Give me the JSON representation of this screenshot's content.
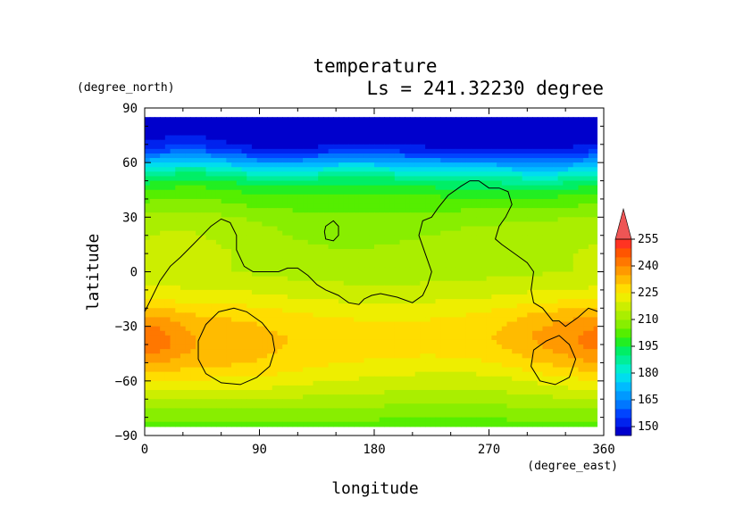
{
  "chart_data": {
    "type": "heatmap",
    "title": "temperature",
    "subtitle": "Ls = 241.32230 degree",
    "xlabel": "longitude",
    "ylabel": "latitude",
    "x_unit": "(degree_east)",
    "y_unit": "(degree_north)",
    "xlim": [
      0,
      360
    ],
    "ylim": [
      -90,
      90
    ],
    "x_ticks": [
      0,
      90,
      180,
      270,
      360
    ],
    "y_ticks": [
      90,
      60,
      30,
      0,
      -30,
      -60,
      -90
    ],
    "x_tick_labels": [
      "0",
      "90",
      "180",
      "270",
      "360"
    ],
    "y_tick_labels": [
      "90",
      "60",
      "30",
      "0",
      "−30",
      "−60",
      "−90"
    ],
    "data_lat_range": [
      -85,
      85
    ],
    "colorbar": {
      "levels": [
        145,
        150,
        155,
        160,
        165,
        170,
        175,
        180,
        185,
        190,
        195,
        200,
        205,
        210,
        215,
        220,
        225,
        230,
        235,
        240,
        245,
        250,
        255,
        260
      ],
      "colors": [
        "#0000cc",
        "#0022ee",
        "#0044ff",
        "#0077ff",
        "#0099ff",
        "#00bbff",
        "#00ddee",
        "#00eecc",
        "#00ee99",
        "#00ee66",
        "#22ee22",
        "#55ee00",
        "#88ee00",
        "#aaee00",
        "#ccee00",
        "#eeee00",
        "#ffdd00",
        "#ffbb00",
        "#ff9900",
        "#ff7700",
        "#ff5500",
        "#ff3322",
        "#ee5555"
      ],
      "tick_labels": [
        "150",
        "165",
        "180",
        "195",
        "210",
        "225",
        "240",
        "255"
      ],
      "extend": "max"
    },
    "zonal_mean_temperature": {
      "lat": [
        85,
        80,
        75,
        70,
        65,
        60,
        55,
        50,
        45,
        40,
        35,
        30,
        25,
        20,
        15,
        10,
        5,
        0,
        -5,
        -10,
        -15,
        -20,
        -25,
        -30,
        -35,
        -40,
        -45,
        -50,
        -55,
        -60,
        -65,
        -70,
        -75,
        -80,
        -85
      ],
      "values": [
        148,
        148,
        149,
        152,
        160,
        172,
        183,
        192,
        198,
        203,
        206,
        210,
        212,
        213,
        214,
        215,
        215,
        215,
        217,
        219,
        221,
        224,
        226,
        227,
        228,
        228,
        227,
        226,
        224,
        221,
        218,
        214,
        210,
        206,
        203
      ]
    },
    "anomalies": [
      {
        "lon": 7,
        "lat": -37,
        "amp": 7,
        "rlon": 18,
        "rlat": 12
      },
      {
        "lon": 70,
        "lat": -40,
        "amp": 5,
        "rlon": 35,
        "rlat": 18
      },
      {
        "lon": 340,
        "lat": -40,
        "amp": 8,
        "rlon": 40,
        "rlat": 16
      },
      {
        "lon": 320,
        "lat": -30,
        "amp": 3,
        "rlon": 30,
        "rlat": 10
      },
      {
        "lon": 190,
        "lat": 10,
        "amp": -3,
        "rlon": 80,
        "rlat": 30
      },
      {
        "lon": 150,
        "lat": 20,
        "amp": -2,
        "rlon": 40,
        "rlat": 12
      },
      {
        "lon": 250,
        "lat": -60,
        "amp": -4,
        "rlon": 60,
        "rlat": 10
      },
      {
        "lon": 270,
        "lat": 60,
        "amp": -8,
        "rlon": 60,
        "rlat": 12
      },
      {
        "lon": 120,
        "lat": 65,
        "amp": -6,
        "rlon": 40,
        "rlat": 10
      },
      {
        "lon": 200,
        "lat": 55,
        "amp": 6,
        "rlon": 50,
        "rlat": 10
      },
      {
        "lon": 40,
        "lat": 55,
        "amp": 5,
        "rlon": 40,
        "rlat": 10
      },
      {
        "lon": 30,
        "lat": 20,
        "amp": 3,
        "rlon": 30,
        "rlat": 15
      }
    ],
    "contours": [
      {
        "name": "north-boundary",
        "points": [
          [
            0,
            -22
          ],
          [
            5,
            -15
          ],
          [
            12,
            -5
          ],
          [
            20,
            3
          ],
          [
            28,
            8
          ],
          [
            38,
            15
          ],
          [
            45,
            20
          ],
          [
            52,
            25
          ],
          [
            60,
            29
          ],
          [
            67,
            27
          ],
          [
            72,
            20
          ],
          [
            72,
            12
          ],
          [
            78,
            3
          ],
          [
            85,
            0
          ],
          [
            105,
            0
          ],
          [
            112,
            2
          ],
          [
            120,
            2
          ],
          [
            128,
            -2
          ],
          [
            135,
            -7
          ],
          [
            142,
            -10
          ],
          [
            152,
            -13
          ],
          [
            160,
            -17
          ],
          [
            168,
            -18
          ],
          [
            172,
            -15
          ],
          [
            178,
            -13
          ],
          [
            185,
            -12
          ],
          [
            198,
            -14
          ],
          [
            210,
            -17
          ],
          [
            218,
            -13
          ],
          [
            222,
            -7
          ],
          [
            225,
            0
          ],
          [
            220,
            10
          ],
          [
            215,
            20
          ],
          [
            218,
            28
          ],
          [
            225,
            30
          ],
          [
            230,
            35
          ],
          [
            238,
            42
          ],
          [
            248,
            47
          ],
          [
            255,
            50
          ],
          [
            262,
            50
          ],
          [
            270,
            46
          ],
          [
            278,
            46
          ],
          [
            285,
            44
          ],
          [
            288,
            37
          ],
          [
            283,
            30
          ],
          [
            278,
            25
          ],
          [
            275,
            18
          ],
          [
            280,
            15
          ],
          [
            290,
            10
          ],
          [
            300,
            5
          ],
          [
            305,
            0
          ],
          [
            303,
            -10
          ],
          [
            305,
            -17
          ],
          [
            312,
            -20
          ],
          [
            320,
            -27
          ],
          [
            325,
            -27
          ],
          [
            330,
            -30
          ],
          [
            340,
            -25
          ],
          [
            348,
            -20
          ],
          [
            356,
            -22
          ]
        ]
      },
      {
        "name": "south-loop-left",
        "points": [
          [
            58,
            -22
          ],
          [
            70,
            -20
          ],
          [
            80,
            -22
          ],
          [
            92,
            -28
          ],
          [
            100,
            -35
          ],
          [
            102,
            -43
          ],
          [
            98,
            -52
          ],
          [
            88,
            -58
          ],
          [
            75,
            -62
          ],
          [
            60,
            -61
          ],
          [
            48,
            -56
          ],
          [
            42,
            -48
          ],
          [
            42,
            -38
          ],
          [
            48,
            -29
          ]
        ]
      },
      {
        "name": "south-loop-right",
        "points": [
          [
            315,
            -38
          ],
          [
            325,
            -35
          ],
          [
            333,
            -40
          ],
          [
            338,
            -48
          ],
          [
            333,
            -58
          ],
          [
            322,
            -62
          ],
          [
            310,
            -60
          ],
          [
            303,
            -52
          ],
          [
            305,
            -43
          ]
        ]
      },
      {
        "name": "small-loop",
        "points": [
          [
            142,
            25
          ],
          [
            148,
            28
          ],
          [
            152,
            25
          ],
          [
            152,
            20
          ],
          [
            148,
            17
          ],
          [
            142,
            18
          ],
          [
            141,
            22
          ]
        ]
      }
    ]
  }
}
